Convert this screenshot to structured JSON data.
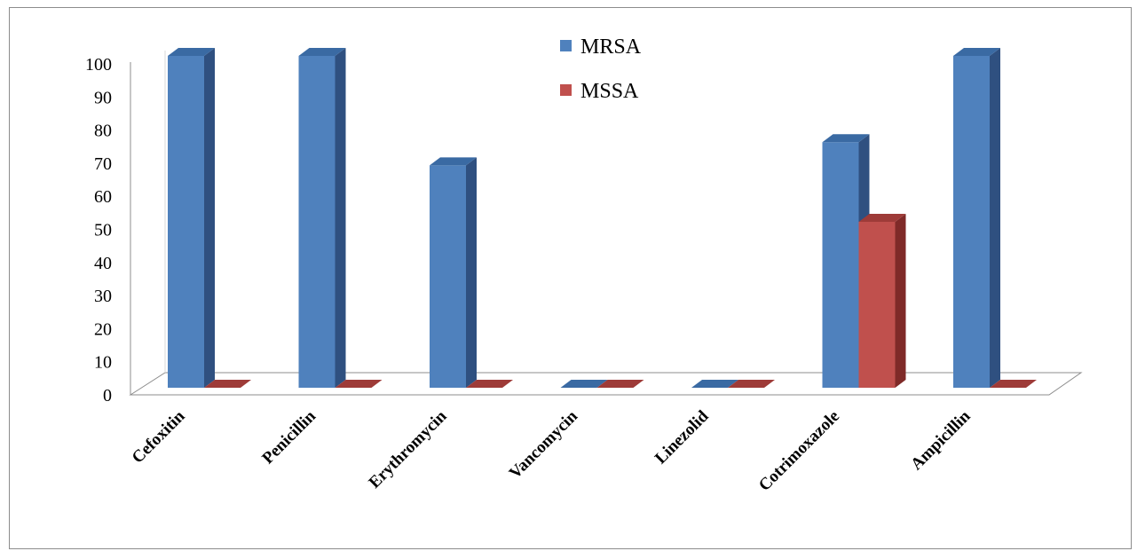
{
  "chart_data": {
    "type": "bar",
    "categories": [
      "Cefoxitin",
      "Penicillin",
      "Erythromycin",
      "Vancomycin",
      "Linezolid",
      "Cotrimoxazole",
      "Ampicillin"
    ],
    "series": [
      {
        "name": "MRSA",
        "values": [
          100,
          100,
          67,
          0,
          0,
          74,
          100
        ],
        "color": "#4f81bd",
        "side_color": "#2f5080",
        "top_color": "#3a6aa3"
      },
      {
        "name": "MSSA",
        "values": [
          0,
          0,
          0,
          0,
          0,
          50,
          0
        ],
        "color": "#c0504d",
        "side_color": "#7f2a28",
        "top_color": "#9e3b38"
      }
    ],
    "yticks": [
      "0",
      "10",
      "20",
      "30",
      "40",
      "50",
      "60",
      "70",
      "80",
      "90",
      "100"
    ],
    "ylim": [
      0,
      100
    ],
    "title": "",
    "xlabel": "",
    "ylabel": "",
    "legend_position": "top-center",
    "grid": false,
    "style": "3d-clustered-column"
  }
}
